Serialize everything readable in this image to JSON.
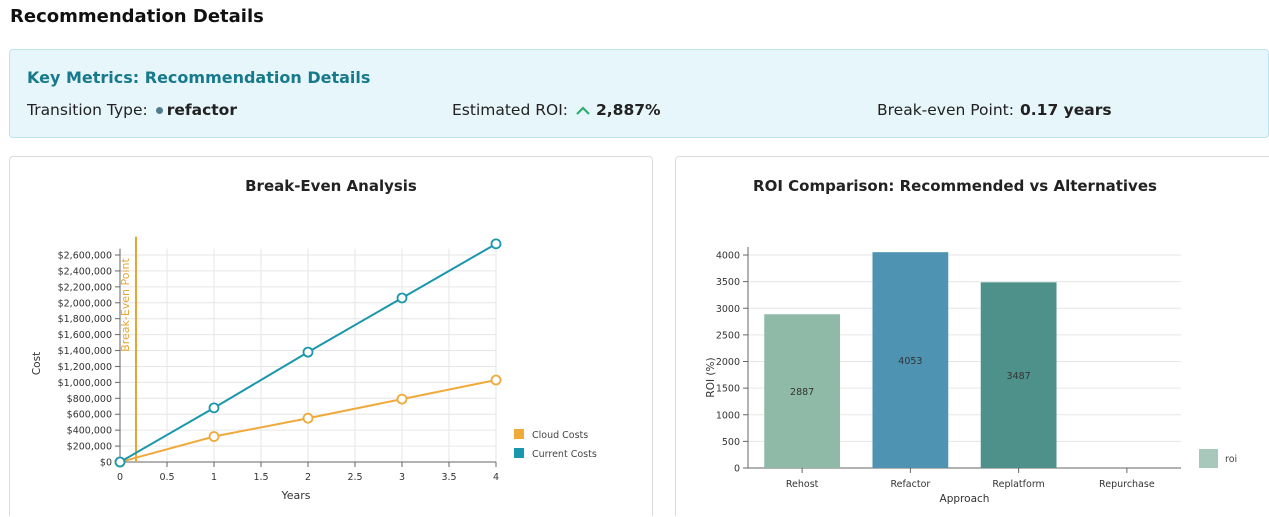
{
  "page": {
    "title": "Recommendation Details"
  },
  "key_metrics": {
    "title": "Key Metrics: Recommendation Details",
    "transition_type": {
      "label": "Transition Type:",
      "value": "refactor"
    },
    "estimated_roi": {
      "label": "Estimated ROI:",
      "value": "2,887%"
    },
    "break_even": {
      "label": "Break-even Point:",
      "value": "0.17 years"
    }
  },
  "colors": {
    "cloud": "#f0a93b",
    "current": "#1a96ad",
    "break_even": "#e6a531",
    "rehost": "#8fbaa8",
    "refactor": "#4e93b1",
    "replatform": "#4e918a",
    "roi_legend": "#a8c8bc",
    "up_arrow": "#2fae6a"
  },
  "chart_data": [
    {
      "type": "line",
      "title": "Break-Even Analysis",
      "xlabel": "Years",
      "ylabel": "Cost",
      "x": [
        0,
        1,
        2,
        3,
        4
      ],
      "xticks": [
        "0",
        "0.5",
        "1",
        "1.5",
        "2",
        "2.5",
        "3",
        "3.5",
        "4"
      ],
      "xlim": [
        0,
        4
      ],
      "ylim": [
        0,
        2600000
      ],
      "yticks": [
        "$0",
        "$200,000",
        "$400,000",
        "$600,000",
        "$800,000",
        "$1,000,000",
        "$1,200,000",
        "$1,400,000",
        "$1,600,000",
        "$1,800,000",
        "$2,000,000",
        "$2,200,000",
        "$2,400,000",
        "$2,600,000"
      ],
      "series": [
        {
          "name": "Cloud Costs",
          "values": [
            0,
            320000,
            550000,
            790000,
            1030000
          ]
        },
        {
          "name": "Current Costs",
          "values": [
            0,
            680000,
            1380000,
            2060000,
            2740000
          ]
        }
      ],
      "reference_line": {
        "x": 0.17,
        "label": "Break-Even Point"
      },
      "grid": true,
      "legend": "bottom-right"
    },
    {
      "type": "bar",
      "title": "ROI Comparison: Recommended vs Alternatives",
      "xlabel": "Approach",
      "ylabel": "ROI (%)",
      "categories": [
        "Rehost",
        "Refactor",
        "Replatform",
        "Repurchase"
      ],
      "values": [
        2887,
        4053,
        3487,
        null
      ],
      "labels": [
        "2887",
        "4053",
        "3487",
        ""
      ],
      "ylim": [
        0,
        4000
      ],
      "yticks": [
        "0",
        "500",
        "1000",
        "1500",
        "2000",
        "2500",
        "3000",
        "3500",
        "4000"
      ],
      "series": [
        {
          "name": "roi"
        }
      ],
      "grid": true,
      "legend": "bottom-right"
    }
  ]
}
